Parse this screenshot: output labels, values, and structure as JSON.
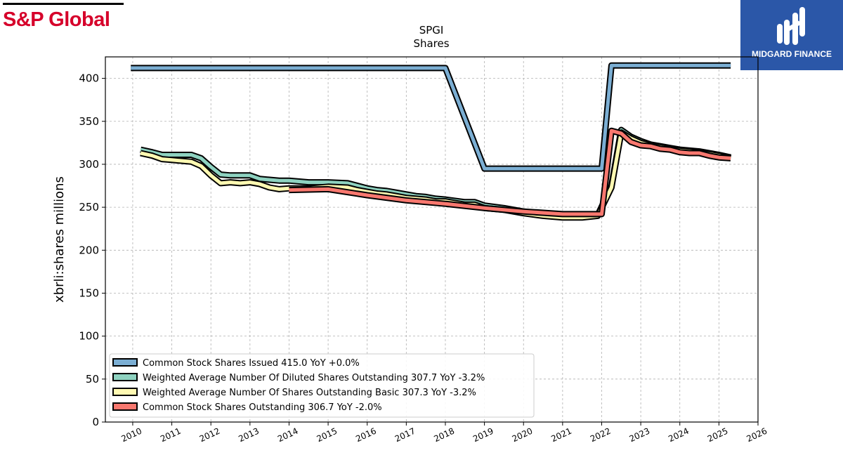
{
  "brand": {
    "left_name": "S&P Global",
    "right_name": "MIDGARD FINANCE"
  },
  "colors": {
    "issued": "#7baed3",
    "diluted": "#8ed2c0",
    "basic": "#fff9b2",
    "outstanding": "#f8786f",
    "outline": "#000000"
  },
  "chart_data": {
    "type": "line",
    "title": "SPGI",
    "subtitle": "Shares",
    "ylabel": "xbrli:shares millions",
    "xlabel": "",
    "xlim": [
      2009.3,
      2026
    ],
    "ylim": [
      0,
      425
    ],
    "grid": true,
    "legend_position": "lower-left",
    "x_ticks": [
      2010,
      2011,
      2012,
      2013,
      2014,
      2015,
      2016,
      2017,
      2018,
      2019,
      2020,
      2021,
      2022,
      2023,
      2024,
      2025,
      2026
    ],
    "y_ticks": [
      0,
      50,
      100,
      150,
      200,
      250,
      300,
      350,
      400
    ],
    "series": [
      {
        "name": "Common Stock Shares Issued  415.0 YoY +0.0%",
        "color": "#7baed3",
        "x": [
          2009.95,
          2011.5,
          2018.0,
          2019.0,
          2022.0,
          2022.25,
          2025.3
        ],
        "y": [
          412,
          412,
          412,
          295,
          295,
          415,
          415
        ]
      },
      {
        "name": "Weighted Average Number Of Diluted Shares Outstanding  307.7 YoY -3.2%",
        "color": "#8ed2c0",
        "x": [
          2010.2,
          2010.5,
          2010.75,
          2011.0,
          2011.25,
          2011.5,
          2011.75,
          2012.0,
          2012.25,
          2012.5,
          2012.75,
          2013.0,
          2013.25,
          2013.5,
          2013.75,
          2014.0,
          2014.5,
          2015.0,
          2015.5,
          2015.75,
          2016.0,
          2016.25,
          2016.5,
          2016.75,
          2017.0,
          2017.25,
          2017.5,
          2017.75,
          2018.0,
          2018.5,
          2018.75,
          2019.0,
          2019.5,
          2020.0,
          2020.5,
          2021.0,
          2021.5,
          2021.9,
          2022.25,
          2022.5,
          2022.75,
          2023.0,
          2023.25,
          2023.5,
          2023.75,
          2024.0,
          2024.25,
          2024.5,
          2024.75,
          2025.0,
          2025.3
        ],
        "y": [
          317,
          314,
          311,
          311,
          311,
          311,
          307,
          297,
          288,
          287,
          287,
          287,
          283,
          282,
          281,
          281,
          279,
          279,
          278,
          275,
          272,
          270,
          269,
          267,
          265,
          263,
          262,
          260,
          259,
          256,
          256,
          252,
          249,
          245,
          241,
          240,
          240,
          241,
          275,
          340,
          332,
          327,
          323,
          321,
          319,
          317,
          316,
          315,
          313,
          311,
          308
        ]
      },
      {
        "name": "Weighted Average Number Of Shares Outstanding Basic  307.3 YoY -3.2%",
        "color": "#fff9b2",
        "x": [
          2010.2,
          2010.5,
          2010.75,
          2011.0,
          2011.25,
          2011.5,
          2011.75,
          2012.0,
          2012.25,
          2012.5,
          2012.75,
          2013.0,
          2013.25,
          2013.5,
          2013.75,
          2014.0,
          2014.5,
          2015.0,
          2015.5,
          2015.75,
          2016.0,
          2016.25,
          2016.5,
          2016.75,
          2017.0,
          2017.25,
          2017.5,
          2017.75,
          2018.0,
          2018.5,
          2018.75,
          2019.0,
          2019.5,
          2020.0,
          2020.5,
          2021.0,
          2021.5,
          2021.9,
          2022.25,
          2022.5,
          2022.75,
          2023.0,
          2023.25,
          2023.5,
          2023.75,
          2024.0,
          2024.25,
          2024.5,
          2024.75,
          2025.0,
          2025.3
        ],
        "y": [
          313,
          310,
          306,
          305,
          304,
          303,
          298,
          287,
          278,
          279,
          278,
          279,
          277,
          273,
          271,
          272,
          272,
          274,
          273,
          270,
          268,
          266,
          265,
          263,
          261,
          260,
          259,
          257,
          257,
          253,
          253,
          249,
          247,
          243,
          240,
          238,
          238,
          240,
          273,
          337,
          330,
          325,
          322,
          320,
          318,
          316,
          315,
          314,
          312,
          310,
          307
        ]
      },
      {
        "name": "Common Stock Shares Outstanding  306.7 YoY -2.0%",
        "color": "#f8786f",
        "x": [
          2014.0,
          2015.0,
          2016.0,
          2017.0,
          2018.0,
          2019.0,
          2020.0,
          2021.0,
          2021.7,
          2022.0,
          2022.25,
          2022.5,
          2022.75,
          2023.0,
          2023.25,
          2023.5,
          2023.75,
          2024.0,
          2024.25,
          2024.5,
          2024.75,
          2025.0,
          2025.3
        ],
        "y": [
          270,
          271,
          264,
          258,
          254,
          249,
          245,
          242,
          242,
          242,
          339,
          336,
          326,
          322,
          321,
          318,
          317,
          314,
          313,
          313,
          310,
          308,
          307
        ]
      }
    ]
  }
}
